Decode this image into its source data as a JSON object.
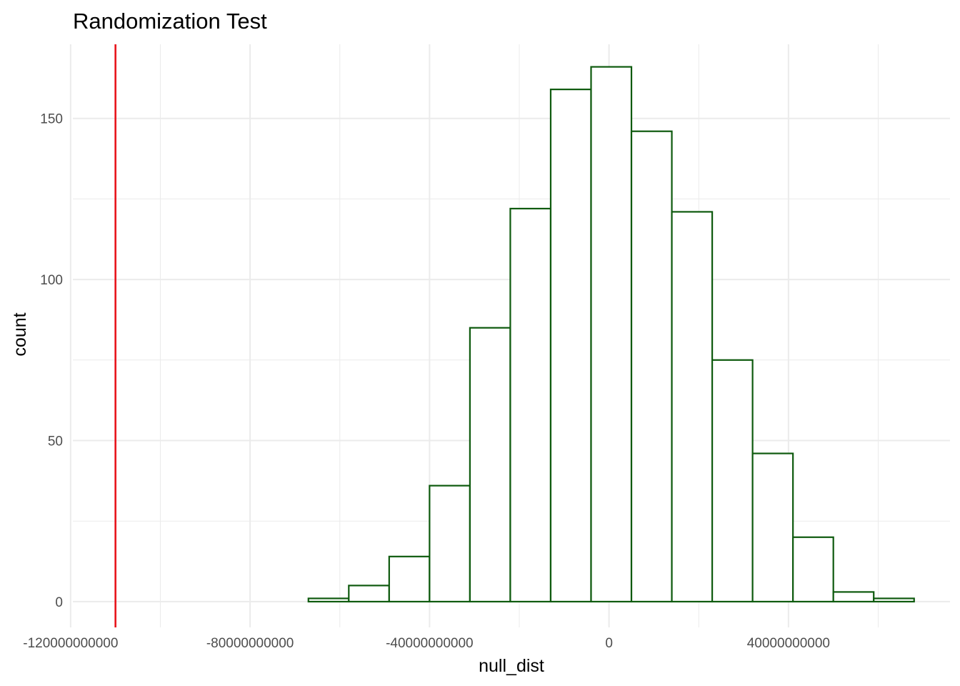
{
  "chart_data": {
    "type": "bar",
    "title": "Randomization Test",
    "xlabel": "null_dist",
    "ylabel": "count",
    "xlim": [
      -119500000000,
      76000000000
    ],
    "ylim": [
      -8,
      173
    ],
    "x_ticks": [
      -120000000000,
      -80000000000,
      -40000000000,
      0,
      40000000000
    ],
    "x_tick_labels": [
      "-120000000000",
      "-80000000000",
      "-40000000000",
      "0",
      "40000000000"
    ],
    "x_minor_ticks": [
      -100000000000,
      -60000000000,
      -20000000000,
      20000000000,
      60000000000
    ],
    "y_ticks": [
      0,
      50,
      100,
      150
    ],
    "y_tick_labels": [
      "0",
      "50",
      "100",
      "150"
    ],
    "y_minor_ticks": [
      25,
      75,
      125
    ],
    "grid": true,
    "bin_width": 9000000000,
    "bins": [
      {
        "x0": -112000000000,
        "x1": -103000000000,
        "count": 0
      },
      {
        "x0": -103000000000,
        "x1": -94000000000,
        "count": 0
      },
      {
        "x0": -94000000000,
        "x1": -85000000000,
        "count": 0
      },
      {
        "x0": -85000000000,
        "x1": -76000000000,
        "count": 0
      },
      {
        "x0": -76000000000,
        "x1": -67000000000,
        "count": 0
      },
      {
        "x0": -67000000000,
        "x1": -58000000000,
        "count": 1
      },
      {
        "x0": -58000000000,
        "x1": -49000000000,
        "count": 5
      },
      {
        "x0": -49000000000,
        "x1": -40000000000,
        "count": 14
      },
      {
        "x0": -40000000000,
        "x1": -31000000000,
        "count": 36
      },
      {
        "x0": -31000000000,
        "x1": -22000000000,
        "count": 85
      },
      {
        "x0": -22000000000,
        "x1": -13000000000,
        "count": 122
      },
      {
        "x0": -13000000000,
        "x1": -4000000000,
        "count": 159
      },
      {
        "x0": -4000000000,
        "x1": 5000000000,
        "count": 166
      },
      {
        "x0": 5000000000,
        "x1": 14000000000,
        "count": 146
      },
      {
        "x0": 14000000000,
        "x1": 23000000000,
        "count": 121
      },
      {
        "x0": 23000000000,
        "x1": 32000000000,
        "count": 75
      },
      {
        "x0": 32000000000,
        "x1": 41000000000,
        "count": 46
      },
      {
        "x0": 41000000000,
        "x1": 50000000000,
        "count": 20
      },
      {
        "x0": 50000000000,
        "x1": 59000000000,
        "count": 3
      },
      {
        "x0": 59000000000,
        "x1": 68000000000,
        "count": 1
      }
    ],
    "reference_line": {
      "x": -110000000000
    },
    "colors": {
      "bar_outline": "#0e5a0e",
      "bar_fill": "#ffffff",
      "reference_line": "#e8141c",
      "grid": "#ebebeb",
      "tick_label": "#4d4d4d"
    }
  }
}
